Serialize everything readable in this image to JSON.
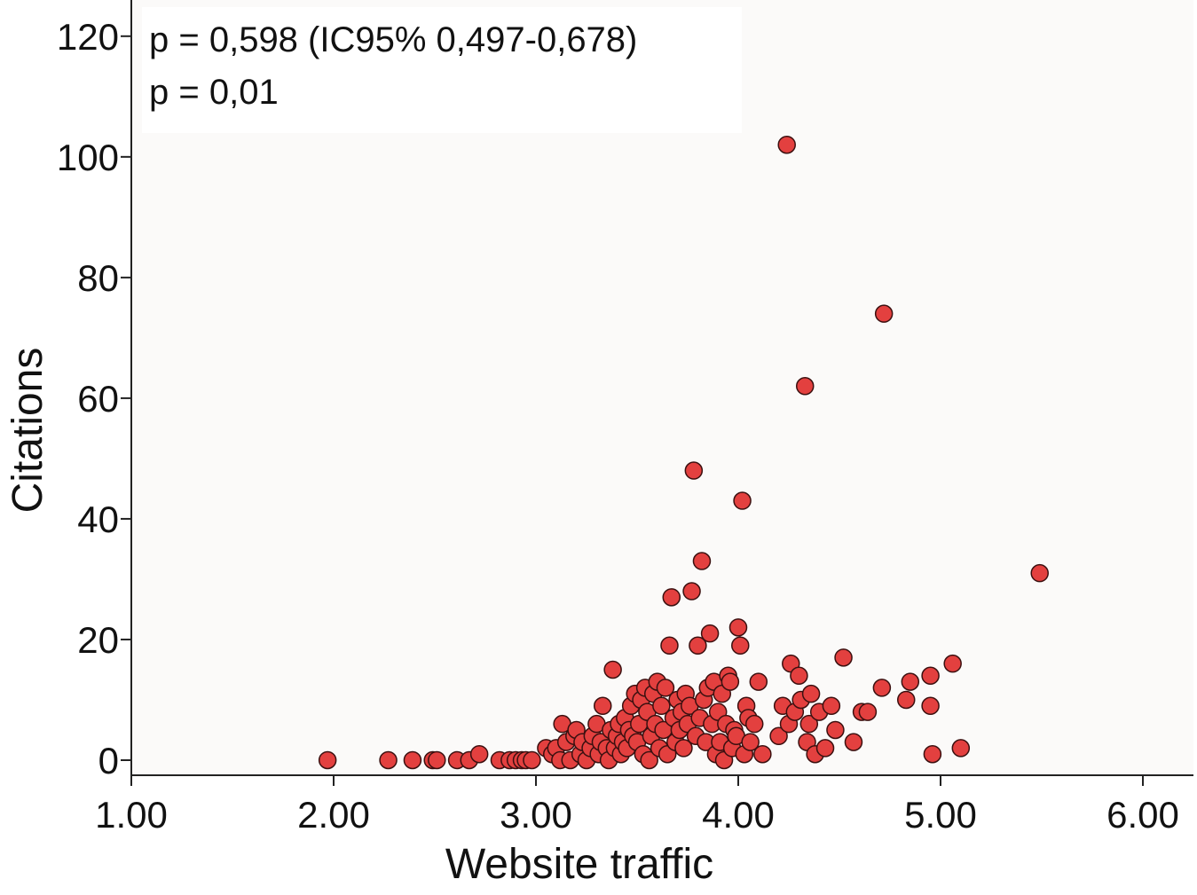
{
  "chart_data": {
    "type": "scatter",
    "title": "",
    "xlabel": "Website traffic",
    "ylabel": "Citations",
    "xlim": [
      1.0,
      6.25
    ],
    "ylim": [
      -2.5,
      126
    ],
    "x_ticks": [
      {
        "value": 1.0,
        "label": "1.00"
      },
      {
        "value": 2.0,
        "label": "2.00"
      },
      {
        "value": 3.0,
        "label": "3.00"
      },
      {
        "value": 4.0,
        "label": "4.00"
      },
      {
        "value": 5.0,
        "label": "5.00"
      },
      {
        "value": 6.0,
        "label": "6.00"
      }
    ],
    "y_ticks": [
      {
        "value": 0,
        "label": "0"
      },
      {
        "value": 20,
        "label": "20"
      },
      {
        "value": 40,
        "label": "40"
      },
      {
        "value": 60,
        "label": "60"
      },
      {
        "value": 80,
        "label": "80"
      },
      {
        "value": 100,
        "label": "100"
      },
      {
        "value": 120,
        "label": "120"
      }
    ],
    "annotations": [
      "p = 0,598 (IC95% 0,497-0,678)",
      "p = 0,01"
    ],
    "grid": false,
    "legend": "none",
    "colors": {
      "plot_background": "#fbfaf9",
      "marker_fill": "#e3403f",
      "marker_stroke": "#3b1010",
      "axis": "#222222",
      "annotation_box": "#ffffff"
    },
    "series": [
      {
        "points": [
          [
            1.97,
            0
          ],
          [
            2.27,
            0
          ],
          [
            2.39,
            0
          ],
          [
            2.49,
            0
          ],
          [
            2.51,
            0
          ],
          [
            2.61,
            0
          ],
          [
            2.67,
            0
          ],
          [
            2.72,
            1
          ],
          [
            2.82,
            0
          ],
          [
            2.87,
            0
          ],
          [
            2.9,
            0
          ],
          [
            2.93,
            0
          ],
          [
            2.95,
            0
          ],
          [
            2.98,
            0
          ],
          [
            3.05,
            2
          ],
          [
            3.08,
            1
          ],
          [
            3.1,
            2
          ],
          [
            3.12,
            0
          ],
          [
            3.13,
            6
          ],
          [
            3.15,
            3
          ],
          [
            3.17,
            0
          ],
          [
            3.19,
            4
          ],
          [
            3.2,
            5
          ],
          [
            3.22,
            1
          ],
          [
            3.23,
            3
          ],
          [
            3.25,
            0
          ],
          [
            3.27,
            2
          ],
          [
            3.28,
            4
          ],
          [
            3.3,
            6
          ],
          [
            3.31,
            1
          ],
          [
            3.32,
            3
          ],
          [
            3.33,
            9
          ],
          [
            3.35,
            2
          ],
          [
            3.36,
            0
          ],
          [
            3.37,
            5
          ],
          [
            3.38,
            15
          ],
          [
            3.39,
            2
          ],
          [
            3.4,
            4
          ],
          [
            3.41,
            6
          ],
          [
            3.42,
            1
          ],
          [
            3.43,
            3
          ],
          [
            3.44,
            7
          ],
          [
            3.45,
            2
          ],
          [
            3.46,
            5
          ],
          [
            3.47,
            9
          ],
          [
            3.48,
            4
          ],
          [
            3.49,
            11
          ],
          [
            3.5,
            3
          ],
          [
            3.51,
            6
          ],
          [
            3.52,
            10
          ],
          [
            3.53,
            1
          ],
          [
            3.54,
            12
          ],
          [
            3.55,
            8
          ],
          [
            3.56,
            0
          ],
          [
            3.57,
            4
          ],
          [
            3.58,
            11
          ],
          [
            3.59,
            6
          ],
          [
            3.6,
            13
          ],
          [
            3.61,
            2
          ],
          [
            3.62,
            9
          ],
          [
            3.63,
            5
          ],
          [
            3.64,
            12
          ],
          [
            3.65,
            1
          ],
          [
            3.66,
            19
          ],
          [
            3.67,
            27
          ],
          [
            3.68,
            7
          ],
          [
            3.69,
            3
          ],
          [
            3.7,
            10
          ],
          [
            3.71,
            5
          ],
          [
            3.72,
            8
          ],
          [
            3.73,
            2
          ],
          [
            3.74,
            11
          ],
          [
            3.75,
            6
          ],
          [
            3.76,
            9
          ],
          [
            3.77,
            28
          ],
          [
            3.78,
            48
          ],
          [
            3.79,
            4
          ],
          [
            3.8,
            19
          ],
          [
            3.81,
            7
          ],
          [
            3.82,
            33
          ],
          [
            3.83,
            10
          ],
          [
            3.84,
            3
          ],
          [
            3.85,
            12
          ],
          [
            3.86,
            21
          ],
          [
            3.87,
            6
          ],
          [
            3.88,
            13
          ],
          [
            3.89,
            1
          ],
          [
            3.9,
            8
          ],
          [
            3.91,
            3
          ],
          [
            3.92,
            11
          ],
          [
            3.93,
            0
          ],
          [
            3.94,
            6
          ],
          [
            3.95,
            14
          ],
          [
            3.96,
            13
          ],
          [
            3.97,
            2
          ],
          [
            3.98,
            5
          ],
          [
            3.99,
            4
          ],
          [
            4.0,
            22
          ],
          [
            4.01,
            19
          ],
          [
            4.02,
            43
          ],
          [
            4.03,
            1
          ],
          [
            4.04,
            9
          ],
          [
            4.05,
            7
          ],
          [
            4.06,
            3
          ],
          [
            4.08,
            6
          ],
          [
            4.1,
            13
          ],
          [
            4.12,
            1
          ],
          [
            4.2,
            4
          ],
          [
            4.22,
            9
          ],
          [
            4.24,
            102
          ],
          [
            4.25,
            6
          ],
          [
            4.26,
            16
          ],
          [
            4.28,
            8
          ],
          [
            4.3,
            14
          ],
          [
            4.31,
            10
          ],
          [
            4.33,
            62
          ],
          [
            4.34,
            3
          ],
          [
            4.35,
            6
          ],
          [
            4.36,
            11
          ],
          [
            4.38,
            1
          ],
          [
            4.4,
            8
          ],
          [
            4.43,
            2
          ],
          [
            4.46,
            9
          ],
          [
            4.48,
            5
          ],
          [
            4.52,
            17
          ],
          [
            4.57,
            3
          ],
          [
            4.61,
            8
          ],
          [
            4.64,
            8
          ],
          [
            4.71,
            12
          ],
          [
            4.72,
            74
          ],
          [
            4.83,
            10
          ],
          [
            4.85,
            13
          ],
          [
            4.95,
            14
          ],
          [
            4.95,
            9
          ],
          [
            4.96,
            1
          ],
          [
            5.06,
            16
          ],
          [
            5.1,
            2
          ],
          [
            5.49,
            31
          ]
        ]
      }
    ]
  }
}
